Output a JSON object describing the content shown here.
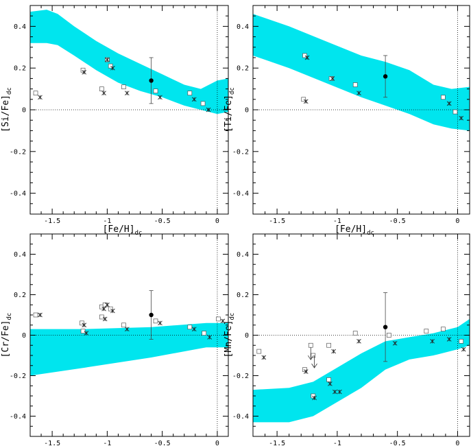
{
  "chart_data": [
    {
      "type": "scatter",
      "xlabel": "[Fe/H]",
      "xlabel_sub": "dc",
      "ylabel": "[Si/Fe]",
      "ylabel_sub": "dc",
      "xlim": [
        -1.7,
        0.1
      ],
      "ylim": [
        -0.5,
        0.5
      ],
      "xticks": [
        -1.5,
        -1,
        -0.5,
        0
      ],
      "xtick_labels": [
        "-1.5",
        "-1",
        "-0.5",
        "0"
      ],
      "yticks": [
        -0.4,
        -0.2,
        0,
        0.2,
        0.4
      ],
      "ytick_labels": [
        "-0.4",
        "-0.2",
        "0",
        "0.2",
        "0.4"
      ],
      "model_band": {
        "x": [
          -1.7,
          -1.55,
          -1.45,
          -1.3,
          -1.1,
          -0.9,
          -0.7,
          -0.5,
          -0.3,
          -0.15,
          0.0,
          0.1
        ],
        "upper": [
          0.47,
          0.48,
          0.46,
          0.4,
          0.33,
          0.27,
          0.22,
          0.17,
          0.12,
          0.1,
          0.14,
          0.15
        ],
        "lower": [
          0.32,
          0.32,
          0.31,
          0.26,
          0.19,
          0.13,
          0.09,
          0.06,
          0.02,
          0.0,
          -0.02,
          -0.01
        ]
      },
      "squares": [
        [
          -1.65,
          0.08
        ],
        [
          -1.22,
          0.19
        ],
        [
          -1.05,
          0.1
        ],
        [
          -1.0,
          0.24
        ],
        [
          -0.97,
          0.21
        ],
        [
          -0.85,
          0.11
        ],
        [
          -0.56,
          0.09
        ],
        [
          -0.25,
          0.08
        ],
        [
          -0.13,
          0.03
        ]
      ],
      "crosses": [
        [
          -1.61,
          0.06
        ],
        [
          -1.21,
          0.18
        ],
        [
          -1.03,
          0.08
        ],
        [
          -1.0,
          0.24
        ],
        [
          -0.95,
          0.2
        ],
        [
          -0.82,
          0.08
        ],
        [
          -0.52,
          0.06
        ],
        [
          -0.21,
          0.05
        ],
        [
          -0.08,
          0.0
        ]
      ],
      "highlight": {
        "x": -0.6,
        "y": 0.14,
        "err": 0.11
      }
    },
    {
      "type": "scatter",
      "xlabel": "[Fe/H]",
      "xlabel_sub": "dc",
      "ylabel": "[Ti/Fe]",
      "ylabel_sub": "dc",
      "xlim": [
        -1.7,
        0.1
      ],
      "ylim": [
        -0.5,
        0.5
      ],
      "xticks": [
        -1.5,
        -1,
        -0.5,
        0
      ],
      "xtick_labels": [
        "-1.5",
        "-1",
        "-0.5",
        "0"
      ],
      "yticks": [
        -0.4,
        -0.2,
        0,
        0.2,
        0.4
      ],
      "ytick_labels": [
        "-0.4",
        "-0.2",
        "0",
        "0.2",
        "0.4"
      ],
      "model_band": {
        "x": [
          -1.7,
          -1.4,
          -1.1,
          -0.8,
          -0.6,
          -0.4,
          -0.2,
          -0.05,
          0.1
        ],
        "upper": [
          0.46,
          0.4,
          0.33,
          0.26,
          0.23,
          0.19,
          0.12,
          0.1,
          0.11
        ],
        "lower": [
          0.26,
          0.2,
          0.13,
          0.06,
          0.02,
          -0.02,
          -0.07,
          -0.09,
          -0.1
        ]
      },
      "squares": [
        [
          -1.28,
          0.05
        ],
        [
          -1.27,
          0.26
        ],
        [
          -1.05,
          0.15
        ],
        [
          -0.85,
          0.12
        ],
        [
          -0.12,
          0.06
        ],
        [
          -0.02,
          -0.01
        ]
      ],
      "crosses": [
        [
          -1.26,
          0.04
        ],
        [
          -1.25,
          0.25
        ],
        [
          -1.04,
          0.15
        ],
        [
          -0.82,
          0.08
        ],
        [
          -0.07,
          0.03
        ],
        [
          0.03,
          -0.04
        ]
      ],
      "highlight": {
        "x": -0.6,
        "y": 0.16,
        "err": 0.1
      }
    },
    {
      "type": "scatter",
      "xlabel": "[Fe/H]",
      "xlabel_sub": "dc",
      "ylabel": "[Cr/Fe]",
      "ylabel_sub": "dc",
      "xlim": [
        -1.7,
        0.1
      ],
      "ylim": [
        -0.5,
        0.5
      ],
      "xticks": [
        -1.5,
        -1,
        -0.5,
        0
      ],
      "xtick_labels": [
        "-1.5",
        "-1",
        "-0.5",
        "0"
      ],
      "yticks": [
        -0.4,
        -0.2,
        0,
        0.2,
        0.4
      ],
      "ytick_labels": [
        "-0.4",
        "-0.2",
        "0",
        "0.2",
        "0.4"
      ],
      "model_band": {
        "x": [
          -1.7,
          -1.2,
          -0.6,
          -0.1,
          0.1
        ],
        "upper": [
          0.03,
          0.03,
          0.04,
          0.06,
          0.06
        ],
        "lower": [
          -0.2,
          -0.16,
          -0.11,
          -0.06,
          -0.06
        ]
      },
      "squares": [
        [
          -1.65,
          0.1
        ],
        [
          -1.23,
          0.06
        ],
        [
          -1.22,
          0.02
        ],
        [
          -1.05,
          0.14
        ],
        [
          -1.05,
          0.09
        ],
        [
          -1.02,
          0.15
        ],
        [
          -0.97,
          0.13
        ],
        [
          -0.85,
          0.05
        ],
        [
          -0.56,
          0.07
        ],
        [
          -0.25,
          0.04
        ],
        [
          -0.12,
          0.01
        ],
        [
          0.01,
          0.08
        ]
      ],
      "crosses": [
        [
          -1.61,
          0.1
        ],
        [
          -1.21,
          0.05
        ],
        [
          -1.19,
          0.01
        ],
        [
          -1.03,
          0.13
        ],
        [
          -1.02,
          0.08
        ],
        [
          -1.0,
          0.15
        ],
        [
          -0.95,
          0.12
        ],
        [
          -0.82,
          0.03
        ],
        [
          -0.52,
          0.06
        ],
        [
          -0.21,
          0.03
        ],
        [
          -0.07,
          -0.01
        ],
        [
          0.05,
          0.07
        ]
      ],
      "highlight": {
        "x": -0.6,
        "y": 0.1,
        "err": 0.12
      }
    },
    {
      "type": "scatter",
      "xlabel": "[Fe/H]",
      "xlabel_sub": "dc",
      "ylabel": "[Mn/Fe]",
      "ylabel_sub": "dc",
      "xlim": [
        -1.7,
        0.1
      ],
      "ylim": [
        -0.5,
        0.5
      ],
      "xticks": [
        -1.5,
        -1,
        -0.5,
        0
      ],
      "xtick_labels": [
        "-1.5",
        "-1",
        "-0.5",
        "0"
      ],
      "yticks": [
        -0.4,
        -0.2,
        0,
        0.2,
        0.4
      ],
      "ytick_labels": [
        "-0.4",
        "-0.2",
        "0",
        "0.2",
        "0.4"
      ],
      "model_band": {
        "x": [
          -1.7,
          -1.4,
          -1.2,
          -1.0,
          -0.8,
          -0.6,
          -0.4,
          -0.2,
          0.0,
          0.1
        ],
        "upper": [
          -0.27,
          -0.26,
          -0.23,
          -0.16,
          -0.09,
          -0.03,
          -0.01,
          0.01,
          0.04,
          0.08
        ],
        "lower": [
          -0.43,
          -0.43,
          -0.4,
          -0.33,
          -0.26,
          -0.17,
          -0.12,
          -0.1,
          -0.07,
          -0.05
        ]
      },
      "squares": [
        [
          -1.65,
          -0.08
        ],
        [
          -1.27,
          -0.17
        ],
        [
          -1.22,
          -0.05
        ],
        [
          -1.2,
          -0.1
        ],
        [
          -1.07,
          -0.05
        ],
        [
          -1.07,
          -0.22
        ],
        [
          -1.2,
          -0.3
        ],
        [
          -0.85,
          0.01
        ],
        [
          -0.57,
          0.0
        ],
        [
          -0.26,
          0.02
        ],
        [
          -0.12,
          0.03
        ],
        [
          0.03,
          -0.03
        ]
      ],
      "crosses": [
        [
          -1.61,
          -0.11
        ],
        [
          -1.26,
          -0.18
        ],
        [
          -1.19,
          -0.31
        ],
        [
          -1.06,
          -0.24
        ],
        [
          -1.02,
          -0.28
        ],
        [
          -0.98,
          -0.28
        ],
        [
          -1.03,
          -0.08
        ],
        [
          -0.82,
          -0.03
        ],
        [
          -0.52,
          -0.04
        ],
        [
          -0.21,
          -0.03
        ],
        [
          -0.07,
          -0.02
        ],
        [
          0.05,
          -0.07
        ]
      ],
      "upper_limits": [
        [
          -1.22,
          -0.06
        ],
        [
          -1.19,
          -0.1
        ]
      ],
      "highlight": {
        "x": -0.6,
        "y": 0.04,
        "err": 0.17
      }
    }
  ]
}
